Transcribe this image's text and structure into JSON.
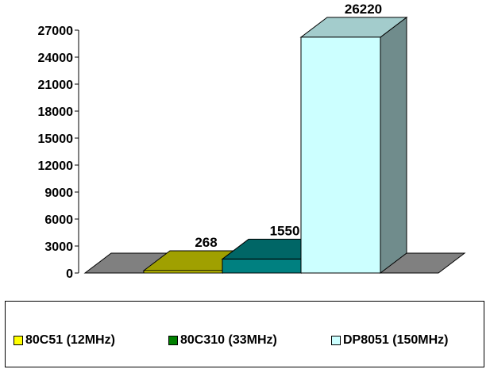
{
  "chart_data": {
    "type": "bar",
    "categories": [
      "80C51 (12MHz)",
      "80C310 (33MHz)",
      "DP8051 (150MHz)"
    ],
    "values": [
      268,
      1550,
      26220
    ],
    "data_labels": [
      "268",
      "1550",
      "26220"
    ],
    "yticks": [
      "0",
      "3000",
      "6000",
      "9000",
      "12000",
      "15000",
      "18000",
      "21000",
      "24000",
      "27000"
    ],
    "ylim": [
      0,
      27000
    ],
    "grid": false,
    "three_d": true,
    "legend_position": "bottom",
    "colors": {
      "series": [
        "#c8c800",
        "#008080",
        "#ccffff"
      ],
      "legend_swatches": [
        "#ffff00",
        "#008000",
        "#ccffff"
      ],
      "floor": "#808080"
    }
  }
}
